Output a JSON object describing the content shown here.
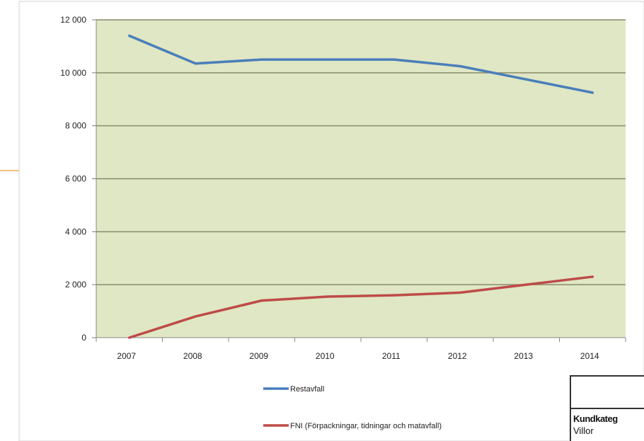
{
  "chart_data": {
    "type": "line",
    "categories": [
      "2007",
      "2008",
      "2009",
      "2010",
      "2011",
      "2012",
      "2013",
      "2014"
    ],
    "ylim": [
      0,
      12000
    ],
    "yticks": [
      0,
      2000,
      4000,
      6000,
      8000,
      10000,
      12000
    ],
    "ytick_labels": [
      "0",
      "2 000",
      "4 000",
      "6 000",
      "8 000",
      "10 000",
      "12 000"
    ],
    "grid": true,
    "legend_position": "bottom",
    "series": [
      {
        "name": "Restavfall",
        "color": "#4a7ebb",
        "values": [
          11400,
          10350,
          10500,
          10500,
          10500,
          10250,
          9750,
          9250
        ]
      },
      {
        "name": "FNI (Förpackningar, tidningar och matavfall)",
        "color": "#be4b48",
        "values": [
          0,
          800,
          1400,
          1550,
          1600,
          1700,
          2000,
          2300
        ]
      }
    ],
    "colors": {
      "plot_background": "#dfe7c4",
      "gridline": "#8a8a6a"
    }
  },
  "side_table": {
    "row1": "Kundkateg",
    "row2": "Villor"
  }
}
